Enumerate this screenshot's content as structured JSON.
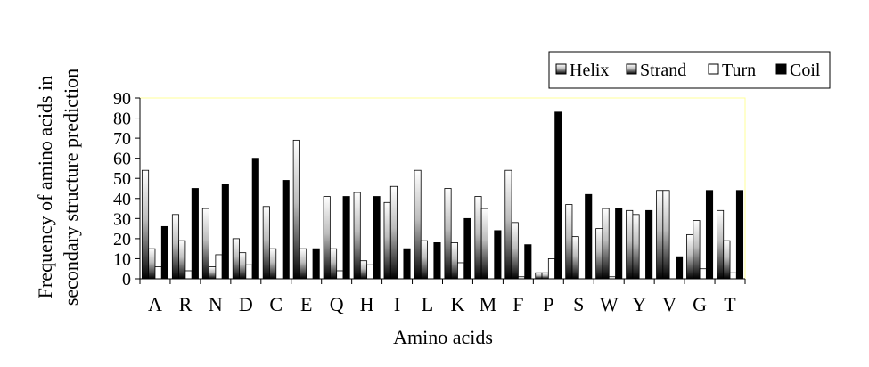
{
  "chart_data": {
    "type": "bar",
    "title": "",
    "xlabel": "Amino acids",
    "ylabel_lines": [
      "Frequency of amino acids in",
      "secondary structure prediction"
    ],
    "ylim": [
      0,
      90
    ],
    "yticks": [
      0,
      10,
      20,
      30,
      40,
      50,
      60,
      70,
      80,
      90
    ],
    "grid": false,
    "legend_position": "top-right",
    "categories": [
      "A",
      "R",
      "N",
      "D",
      "C",
      "E",
      "Q",
      "H",
      "I",
      "L",
      "K",
      "M",
      "F",
      "P",
      "S",
      "W",
      "Y",
      "V",
      "G",
      "T"
    ],
    "series": [
      {
        "name": "Helix",
        "fill": "gradient",
        "values": [
          54,
          32,
          35,
          20,
          36,
          69,
          41,
          43,
          38,
          54,
          45,
          41,
          54,
          3,
          37,
          25,
          34,
          44,
          22,
          34
        ]
      },
      {
        "name": "Strand",
        "fill": "gradient",
        "values": [
          15,
          19,
          6,
          13,
          15,
          15,
          15,
          9,
          46,
          19,
          18,
          35,
          28,
          3,
          21,
          35,
          32,
          44,
          29,
          19
        ]
      },
      {
        "name": "Turn",
        "fill": "white",
        "values": [
          6,
          4,
          12,
          7,
          0,
          0,
          4,
          7,
          0,
          0,
          8,
          0,
          1,
          10,
          0,
          1,
          0,
          0,
          5,
          3
        ]
      },
      {
        "name": "Coil",
        "fill": "black",
        "values": [
          26,
          45,
          47,
          60,
          49,
          15,
          41,
          41,
          15,
          18,
          30,
          24,
          17,
          83,
          42,
          35,
          34,
          11,
          44,
          44
        ]
      }
    ],
    "colors": {
      "plot_border": "#ffff99",
      "axis": "#000000",
      "coil": "#000000",
      "turn": "#ffffff"
    }
  }
}
